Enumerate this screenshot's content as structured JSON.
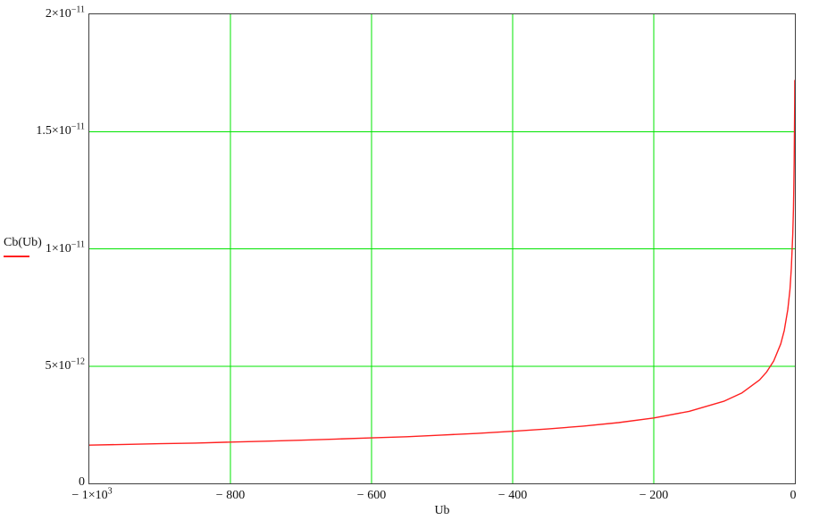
{
  "figure": {
    "legend": {
      "label": "Cb(Ub)",
      "trace_color": "#ff2020"
    },
    "y_axis": {
      "ticks": [
        {
          "base": "2×10",
          "exp": "−11"
        },
        {
          "base": "1.5×10",
          "exp": "−11"
        },
        {
          "base": "1×10",
          "exp": "−11"
        },
        {
          "base": "5×10",
          "exp": "−12"
        },
        {
          "base": "0",
          "exp": ""
        }
      ]
    },
    "x_axis": {
      "title": "Ub",
      "ticks": [
        {
          "base": "− 1×10",
          "exp": "3"
        },
        {
          "base": "− 800",
          "exp": ""
        },
        {
          "base": "− 600",
          "exp": ""
        },
        {
          "base": "− 400",
          "exp": ""
        },
        {
          "base": "− 200",
          "exp": ""
        },
        {
          "base": "0",
          "exp": ""
        }
      ]
    }
  },
  "chart_data": {
    "type": "line",
    "title": "",
    "xlabel": "Ub",
    "ylabel": "Cb(Ub)",
    "xlim": [
      -1000,
      0
    ],
    "ylim": [
      0,
      2e-11
    ],
    "x_tick_values": [
      -1000,
      -800,
      -600,
      -400,
      -200,
      0
    ],
    "y_tick_values": [
      0,
      5e-12,
      1e-11,
      1.5e-11,
      2e-11
    ],
    "grid": true,
    "grid_color": "#00e400",
    "frame_color": "#3f3f3f",
    "legend_position": "left-middle",
    "series": [
      {
        "name": "Cb(Ub)",
        "color": "#ff2020",
        "x": [
          -1000,
          -950,
          -900,
          -850,
          -800,
          -750,
          -700,
          -650,
          -600,
          -550,
          -500,
          -450,
          -400,
          -350,
          -300,
          -250,
          -200,
          -150,
          -100,
          -75,
          -50,
          -40,
          -30,
          -20,
          -15,
          -10,
          -7,
          -5,
          -3,
          -2,
          -1.5,
          -1,
          -0.7,
          -0.5,
          -0.3,
          -0.15
        ],
        "y": [
          1.63e-12,
          1.66e-12,
          1.69e-12,
          1.72e-12,
          1.76e-12,
          1.8e-12,
          1.84e-12,
          1.89e-12,
          1.94e-12,
          1.99e-12,
          2.06e-12,
          2.13e-12,
          2.22e-12,
          2.32e-12,
          2.44e-12,
          2.59e-12,
          2.79e-12,
          3.07e-12,
          3.51e-12,
          3.86e-12,
          4.41e-12,
          4.75e-12,
          5.22e-12,
          5.95e-12,
          6.52e-12,
          7.42e-12,
          8.27e-12,
          9.16e-12,
          1.06e-11,
          1.17e-11,
          1.26e-11,
          1.37e-11,
          1.46e-11,
          1.54e-11,
          1.63e-11,
          1.72e-11
        ]
      }
    ]
  }
}
